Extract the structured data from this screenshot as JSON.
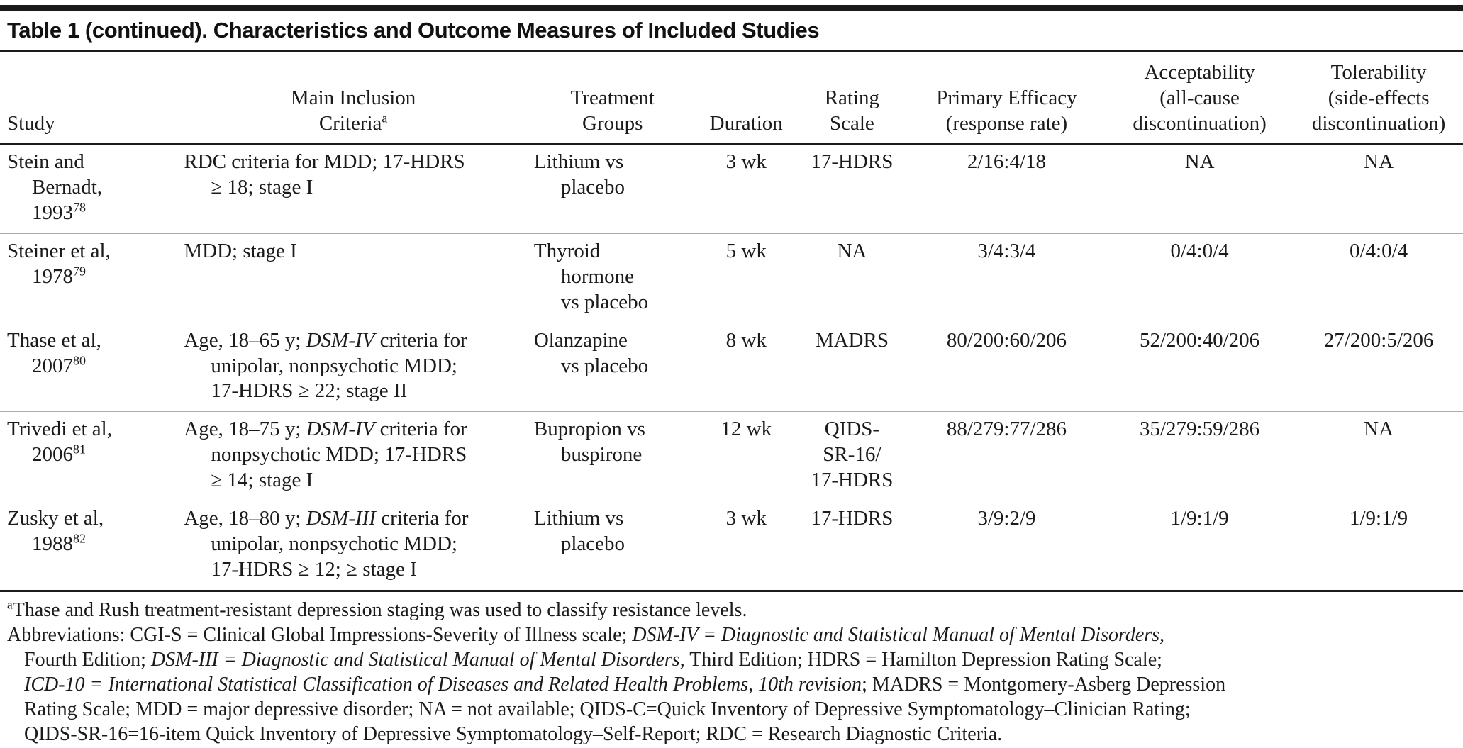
{
  "table": {
    "title": "Table 1 (continued). Characteristics and Outcome Measures of Included Studies",
    "seg_style_legend": "0=regular, 1=italic, 2=superscript",
    "columns": [
      {
        "id": "study",
        "head": {
          "seg": [
            [
              "Study",
              0
            ]
          ]
        }
      },
      {
        "id": "criteria",
        "head": {
          "seg": [
            [
              "Main Inclusion\nCriteria",
              0
            ],
            [
              "a",
              2
            ]
          ]
        }
      },
      {
        "id": "treatment",
        "head": {
          "seg": [
            [
              "Treatment\nGroups",
              0
            ]
          ]
        }
      },
      {
        "id": "duration",
        "head": {
          "seg": [
            [
              "Duration",
              0
            ]
          ]
        }
      },
      {
        "id": "rating",
        "head": {
          "seg": [
            [
              "Rating\nScale",
              0
            ]
          ]
        }
      },
      {
        "id": "efficacy",
        "head": {
          "seg": [
            [
              "Primary Efficacy\n(response rate)",
              0
            ]
          ]
        }
      },
      {
        "id": "acceptability",
        "head": {
          "seg": [
            [
              "Acceptability\n(all-cause\ndiscontinuation)",
              0
            ]
          ]
        }
      },
      {
        "id": "tolerability",
        "head": {
          "seg": [
            [
              "Tolerability\n(side-effects\ndiscontinuation)",
              0
            ]
          ]
        }
      }
    ],
    "rows": [
      {
        "study": {
          "seg": [
            [
              "Stein and\nBernadt,\n1993",
              0
            ],
            [
              "78",
              2
            ]
          ]
        },
        "criteria": {
          "seg": [
            [
              "RDC criteria for MDD; 17-HDRS\n≥ 18; stage I",
              0
            ]
          ]
        },
        "treatment": {
          "seg": [
            [
              "Lithium vs\nplacebo",
              0
            ]
          ]
        },
        "duration": {
          "seg": [
            [
              "3 wk",
              0
            ]
          ]
        },
        "rating": {
          "seg": [
            [
              "17-HDRS",
              0
            ]
          ]
        },
        "efficacy": {
          "seg": [
            [
              "2/16:4/18",
              0
            ]
          ]
        },
        "acceptability": {
          "seg": [
            [
              "NA",
              0
            ]
          ]
        },
        "tolerability": {
          "seg": [
            [
              "NA",
              0
            ]
          ]
        }
      },
      {
        "study": {
          "seg": [
            [
              "Steiner et al,\n1978",
              0
            ],
            [
              "79",
              2
            ]
          ]
        },
        "criteria": {
          "seg": [
            [
              "MDD; stage I",
              0
            ]
          ]
        },
        "treatment": {
          "seg": [
            [
              "Thyroid\nhormone\nvs placebo",
              0
            ]
          ]
        },
        "duration": {
          "seg": [
            [
              "5 wk",
              0
            ]
          ]
        },
        "rating": {
          "seg": [
            [
              "NA",
              0
            ]
          ]
        },
        "efficacy": {
          "seg": [
            [
              "3/4:3/4",
              0
            ]
          ]
        },
        "acceptability": {
          "seg": [
            [
              "0/4:0/4",
              0
            ]
          ]
        },
        "tolerability": {
          "seg": [
            [
              "0/4:0/4",
              0
            ]
          ]
        }
      },
      {
        "study": {
          "seg": [
            [
              "Thase et al,\n2007",
              0
            ],
            [
              "80",
              2
            ]
          ]
        },
        "criteria": {
          "seg": [
            [
              "Age, 18–65 y; ",
              0
            ],
            [
              "DSM-IV",
              1
            ],
            [
              " criteria for\nunipolar, nonpsychotic MDD;\n17-HDRS ≥ 22; stage II",
              0
            ]
          ]
        },
        "treatment": {
          "seg": [
            [
              "Olanzapine\nvs placebo",
              0
            ]
          ]
        },
        "duration": {
          "seg": [
            [
              "8 wk",
              0
            ]
          ]
        },
        "rating": {
          "seg": [
            [
              "MADRS",
              0
            ]
          ]
        },
        "efficacy": {
          "seg": [
            [
              "80/200:60/206",
              0
            ]
          ]
        },
        "acceptability": {
          "seg": [
            [
              "52/200:40/206",
              0
            ]
          ]
        },
        "tolerability": {
          "seg": [
            [
              "27/200:5/206",
              0
            ]
          ]
        }
      },
      {
        "study": {
          "seg": [
            [
              "Trivedi et al,\n2006",
              0
            ],
            [
              "81",
              2
            ]
          ]
        },
        "criteria": {
          "seg": [
            [
              "Age, 18–75 y; ",
              0
            ],
            [
              "DSM-IV",
              1
            ],
            [
              " criteria for\nnonpsychotic MDD; 17-HDRS\n≥ 14; stage I",
              0
            ]
          ]
        },
        "treatment": {
          "seg": [
            [
              "Bupropion vs\nbuspirone",
              0
            ]
          ]
        },
        "duration": {
          "seg": [
            [
              "12 wk",
              0
            ]
          ]
        },
        "rating": {
          "seg": [
            [
              "QIDS-\nSR-16/\n17-HDRS",
              0
            ]
          ]
        },
        "efficacy": {
          "seg": [
            [
              "88/279:77/286",
              0
            ]
          ]
        },
        "acceptability": {
          "seg": [
            [
              "35/279:59/286",
              0
            ]
          ]
        },
        "tolerability": {
          "seg": [
            [
              "NA",
              0
            ]
          ]
        }
      },
      {
        "study": {
          "seg": [
            [
              "Zusky et al,\n1988",
              0
            ],
            [
              "82",
              2
            ]
          ]
        },
        "criteria": {
          "seg": [
            [
              "Age, 18–80 y; ",
              0
            ],
            [
              "DSM-III",
              1
            ],
            [
              " criteria for\nunipolar, nonpsychotic MDD;\n17-HDRS ≥ 12; ≥ stage I",
              0
            ]
          ]
        },
        "treatment": {
          "seg": [
            [
              "Lithium vs\nplacebo",
              0
            ]
          ]
        },
        "duration": {
          "seg": [
            [
              "3 wk",
              0
            ]
          ]
        },
        "rating": {
          "seg": [
            [
              "17-HDRS",
              0
            ]
          ]
        },
        "efficacy": {
          "seg": [
            [
              "3/9:2/9",
              0
            ]
          ]
        },
        "acceptability": {
          "seg": [
            [
              "1/9:1/9",
              0
            ]
          ]
        },
        "tolerability": {
          "seg": [
            [
              "1/9:1/9",
              0
            ]
          ]
        }
      }
    ]
  },
  "footnotes": {
    "lines": [
      {
        "indent": false,
        "seg": [
          [
            "a",
            2
          ],
          [
            "Thase and Rush treatment-resistant depression staging was used to classify resistance levels.",
            0
          ]
        ]
      },
      {
        "indent": false,
        "seg": [
          [
            "Abbreviations: CGI-S = Clinical Global Impressions-Severity of Illness scale; ",
            0
          ],
          [
            "DSM-IV = Diagnostic and Statistical Manual of Mental Disorders,",
            1
          ]
        ]
      },
      {
        "indent": true,
        "seg": [
          [
            "Fourth Edition; ",
            0
          ],
          [
            "DSM-III = Diagnostic and Statistical Manual of Mental Disorders",
            1
          ],
          [
            ", Third Edition; HDRS = Hamilton Depression Rating Scale;",
            0
          ]
        ]
      },
      {
        "indent": true,
        "seg": [
          [
            "ICD-10 = International Statistical Classification of Diseases and Related Health Problems, 10th revision",
            1
          ],
          [
            "; MADRS = Montgomery-Asberg Depression",
            0
          ]
        ]
      },
      {
        "indent": true,
        "seg": [
          [
            "Rating Scale; MDD = major depressive disorder; NA = not available; QIDS-C=Quick Inventory of Depressive Symptomatology–Clinician Rating;",
            0
          ]
        ]
      },
      {
        "indent": true,
        "seg": [
          [
            "QIDS-SR-16=16-item Quick Inventory of Depressive Symptomatology–Self-Report; RDC = Research Diagnostic Criteria.",
            0
          ]
        ]
      }
    ]
  }
}
